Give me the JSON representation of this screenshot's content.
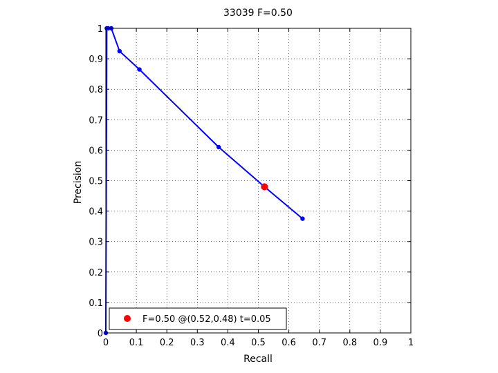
{
  "chart_data": {
    "type": "line",
    "title": "33039 F=0.50",
    "xlabel": "Recall",
    "ylabel": "Precision",
    "xlim": [
      0,
      1
    ],
    "ylim": [
      0,
      1
    ],
    "xticks": [
      "0",
      "0.1",
      "0.2",
      "0.3",
      "0.4",
      "0.5",
      "0.6",
      "0.7",
      "0.8",
      "0.9",
      "1"
    ],
    "yticks": [
      "0",
      "0.1",
      "0.2",
      "0.3",
      "0.4",
      "0.5",
      "0.6",
      "0.7",
      "0.8",
      "0.9",
      "1"
    ],
    "grid": true,
    "series": [
      {
        "color": "#0000ff",
        "x": [
          0,
          0.003,
          0.008,
          0.018,
          0.045,
          0.11,
          0.37,
          0.52,
          0.645
        ],
        "y": [
          0,
          1.0,
          1.0,
          1.0,
          0.925,
          0.865,
          0.61,
          0.48,
          0.375
        ]
      }
    ],
    "highlight_point": {
      "x": 0.52,
      "y": 0.48,
      "color": "#ff0000"
    },
    "legend": {
      "position": "bottom-left",
      "text": "F=0.50 @(0.52,0.48) t=0.05",
      "marker_color": "#ff0000"
    }
  }
}
